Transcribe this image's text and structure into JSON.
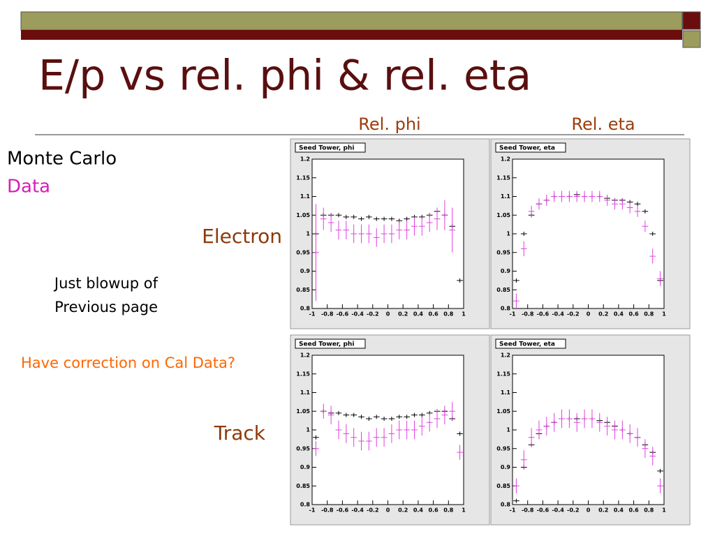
{
  "slide": {
    "title": "E/p vs rel. phi & rel. eta",
    "column_headings": [
      "Rel. phi",
      "Rel. eta"
    ],
    "row_labels": [
      "Electron",
      "Track"
    ],
    "note": [
      "Just blowup of",
      "Previous page"
    ],
    "question": "Have correction on Cal Data?"
  },
  "chart_data": [
    {
      "type": "errorbar",
      "title": "Seed Tower, phi",
      "xlim": [
        -1,
        1
      ],
      "ylim": [
        0.8,
        1.2
      ],
      "xticks": [
        -1,
        -0.8,
        -0.6,
        -0.4,
        -0.2,
        0,
        0.2,
        0.4,
        0.6,
        0.8,
        1
      ],
      "yticks": [
        0.8,
        0.85,
        0.9,
        0.95,
        1,
        1.05,
        1.1,
        1.15,
        1.2
      ],
      "x": [
        -0.95,
        -0.85,
        -0.75,
        -0.65,
        -0.55,
        -0.45,
        -0.35,
        -0.25,
        -0.15,
        -0.05,
        0.05,
        0.15,
        0.25,
        0.35,
        0.45,
        0.55,
        0.65,
        0.75,
        0.85,
        0.95
      ],
      "series": [
        {
          "name": "Monte Carlo",
          "color": "#000000",
          "values": [
            1.0,
            1.05,
            1.05,
            1.05,
            1.045,
            1.045,
            1.04,
            1.045,
            1.04,
            1.04,
            1.04,
            1.035,
            1.04,
            1.045,
            1.045,
            1.05,
            1.06,
            1.05,
            1.02,
            0.875
          ]
        },
        {
          "name": "Data",
          "color": "#e040e0",
          "values": [
            0.95,
            1.04,
            1.03,
            1.01,
            1.01,
            1.0,
            1.0,
            1.0,
            0.99,
            1.0,
            1.0,
            1.01,
            1.01,
            1.02,
            1.02,
            1.03,
            1.04,
            1.05,
            1.01,
            null
          ],
          "errors": [
            0.13,
            0.03,
            0.025,
            0.025,
            0.025,
            0.025,
            0.025,
            0.025,
            0.025,
            0.025,
            0.025,
            0.025,
            0.025,
            0.025,
            0.025,
            0.025,
            0.03,
            0.04,
            0.06,
            null
          ]
        }
      ]
    },
    {
      "type": "errorbar",
      "title": "Seed Tower, eta",
      "xlim": [
        -1,
        1
      ],
      "ylim": [
        0.8,
        1.2
      ],
      "xticks": [
        -1,
        -0.8,
        -0.6,
        -0.4,
        -0.2,
        0,
        0.2,
        0.4,
        0.6,
        0.8,
        1
      ],
      "yticks": [
        0.8,
        0.85,
        0.9,
        0.95,
        1,
        1.05,
        1.1,
        1.15,
        1.2
      ],
      "x": [
        -0.95,
        -0.85,
        -0.75,
        -0.65,
        -0.55,
        -0.45,
        -0.35,
        -0.25,
        -0.15,
        -0.05,
        0.05,
        0.15,
        0.25,
        0.35,
        0.45,
        0.55,
        0.65,
        0.75,
        0.85,
        0.95
      ],
      "series": [
        {
          "name": "Monte Carlo",
          "color": "#000000",
          "values": [
            0.875,
            1.0,
            1.05,
            1.08,
            1.09,
            1.1,
            1.1,
            1.1,
            1.105,
            1.1,
            1.1,
            1.1,
            1.095,
            1.09,
            1.09,
            1.085,
            1.08,
            1.06,
            1.0,
            0.875
          ]
        },
        {
          "name": "Data",
          "color": "#e040e0",
          "values": [
            0.82,
            0.96,
            1.06,
            1.08,
            1.09,
            1.1,
            1.1,
            1.1,
            1.1,
            1.1,
            1.1,
            1.1,
            1.09,
            1.08,
            1.08,
            1.07,
            1.06,
            1.02,
            0.94,
            0.88
          ],
          "errors": [
            0.02,
            0.02,
            0.015,
            0.015,
            0.015,
            0.015,
            0.015,
            0.015,
            0.015,
            0.015,
            0.015,
            0.015,
            0.015,
            0.015,
            0.015,
            0.015,
            0.015,
            0.015,
            0.02,
            0.02
          ]
        }
      ]
    },
    {
      "type": "errorbar",
      "title": "Seed Tower, phi",
      "xlim": [
        -1,
        1
      ],
      "ylim": [
        0.8,
        1.2
      ],
      "xticks": [
        -1,
        -0.8,
        -0.6,
        -0.4,
        -0.2,
        0,
        0.2,
        0.4,
        0.6,
        0.8,
        1
      ],
      "yticks": [
        0.8,
        0.85,
        0.9,
        0.95,
        1,
        1.05,
        1.1,
        1.15,
        1.2
      ],
      "x": [
        -0.95,
        -0.85,
        -0.75,
        -0.65,
        -0.55,
        -0.45,
        -0.35,
        -0.25,
        -0.15,
        -0.05,
        0.05,
        0.15,
        0.25,
        0.35,
        0.45,
        0.55,
        0.65,
        0.75,
        0.85,
        0.95
      ],
      "series": [
        {
          "name": "Monte Carlo",
          "color": "#000000",
          "values": [
            0.98,
            1.05,
            1.045,
            1.045,
            1.04,
            1.04,
            1.035,
            1.03,
            1.035,
            1.03,
            1.03,
            1.035,
            1.035,
            1.04,
            1.04,
            1.045,
            1.05,
            1.05,
            1.03,
            0.99
          ]
        },
        {
          "name": "Data",
          "color": "#e040e0",
          "values": [
            0.95,
            1.05,
            1.04,
            1.0,
            0.99,
            0.98,
            0.97,
            0.97,
            0.98,
            0.98,
            0.99,
            1.0,
            1.0,
            1.0,
            1.01,
            1.02,
            1.03,
            1.04,
            1.05,
            0.94
          ],
          "errors": [
            0.02,
            0.02,
            0.025,
            0.025,
            0.025,
            0.025,
            0.025,
            0.025,
            0.025,
            0.025,
            0.025,
            0.025,
            0.025,
            0.025,
            0.025,
            0.025,
            0.025,
            0.025,
            0.025,
            0.02
          ]
        }
      ]
    },
    {
      "type": "errorbar",
      "title": "Seed Tower, eta",
      "xlim": [
        -1,
        1
      ],
      "ylim": [
        0.8,
        1.2
      ],
      "xticks": [
        -1,
        -0.8,
        -0.6,
        -0.4,
        -0.2,
        0,
        0.2,
        0.4,
        0.6,
        0.8,
        1
      ],
      "yticks": [
        0.8,
        0.85,
        0.9,
        0.95,
        1,
        1.05,
        1.1,
        1.15,
        1.2
      ],
      "x": [
        -0.95,
        -0.85,
        -0.75,
        -0.65,
        -0.55,
        -0.45,
        -0.35,
        -0.25,
        -0.15,
        -0.05,
        0.05,
        0.15,
        0.25,
        0.35,
        0.45,
        0.55,
        0.65,
        0.75,
        0.85,
        0.95
      ],
      "series": [
        {
          "name": "Monte Carlo",
          "color": "#000000",
          "values": [
            0.81,
            0.9,
            0.96,
            0.99,
            1.01,
            1.02,
            1.03,
            1.03,
            1.03,
            1.03,
            1.03,
            1.025,
            1.02,
            1.01,
            1.0,
            0.99,
            0.98,
            0.96,
            0.94,
            0.89
          ]
        },
        {
          "name": "Data",
          "color": "#e040e0",
          "values": [
            0.85,
            0.92,
            0.98,
            1.0,
            1.01,
            1.02,
            1.03,
            1.03,
            1.02,
            1.03,
            1.03,
            1.02,
            1.01,
            1.0,
            1.0,
            0.99,
            0.98,
            0.95,
            0.93,
            0.85
          ],
          "errors": [
            0.02,
            0.025,
            0.025,
            0.025,
            0.025,
            0.025,
            0.025,
            0.025,
            0.025,
            0.025,
            0.025,
            0.025,
            0.025,
            0.025,
            0.025,
            0.025,
            0.025,
            0.025,
            0.025,
            0.02
          ]
        }
      ]
    }
  ]
}
